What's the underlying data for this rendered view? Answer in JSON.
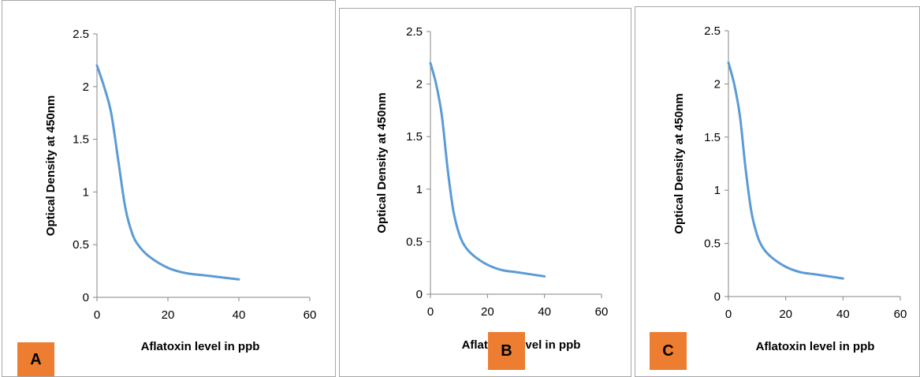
{
  "chart_data": [
    {
      "type": "line",
      "panel_label": "A",
      "xlabel": "Aflatoxin level in ppb",
      "ylabel": "Optical Density at 450nm",
      "xlim": [
        0,
        60
      ],
      "ylim": [
        0,
        2.5
      ],
      "xticks": [
        0,
        20,
        40,
        60
      ],
      "yticks": [
        0,
        0.5,
        1,
        1.5,
        2,
        2.5
      ],
      "series": [
        {
          "x": [
            0,
            2,
            4,
            6,
            8,
            10,
            12,
            15,
            20,
            25,
            30,
            35,
            40
          ],
          "y": [
            2.2,
            2.0,
            1.75,
            1.3,
            0.85,
            0.6,
            0.48,
            0.38,
            0.28,
            0.23,
            0.21,
            0.19,
            0.17
          ]
        }
      ]
    },
    {
      "type": "line",
      "panel_label": "B",
      "xlabel": "Aflatoxin level in ppb",
      "ylabel": "Optical Density at 450nm",
      "xlim": [
        0,
        60
      ],
      "ylim": [
        0,
        2.5
      ],
      "xticks": [
        0,
        20,
        40,
        60
      ],
      "yticks": [
        0,
        0.5,
        1,
        1.5,
        2,
        2.5
      ],
      "series": [
        {
          "x": [
            0,
            2,
            4,
            6,
            8,
            10,
            12,
            15,
            20,
            25,
            30,
            35,
            40
          ],
          "y": [
            2.2,
            2.0,
            1.7,
            1.2,
            0.8,
            0.58,
            0.46,
            0.37,
            0.28,
            0.23,
            0.21,
            0.19,
            0.17
          ]
        }
      ]
    },
    {
      "type": "line",
      "panel_label": "C",
      "xlabel": "Aflatoxin level in ppb",
      "ylabel": "Optical Density at 450nm",
      "xlim": [
        0,
        60
      ],
      "ylim": [
        0,
        2.5
      ],
      "xticks": [
        0,
        20,
        40,
        60
      ],
      "yticks": [
        0,
        0.5,
        1,
        1.5,
        2,
        2.5
      ],
      "series": [
        {
          "x": [
            0,
            2,
            4,
            6,
            8,
            10,
            12,
            15,
            20,
            25,
            30,
            35,
            40
          ],
          "y": [
            2.2,
            2.0,
            1.7,
            1.2,
            0.8,
            0.58,
            0.46,
            0.37,
            0.28,
            0.23,
            0.21,
            0.19,
            0.17
          ]
        }
      ]
    }
  ],
  "style": {
    "line_color": "#5b9bd5",
    "axis_color": "#868686",
    "badge_color": "#ed7d31",
    "panel_border": "#a6a6a6"
  }
}
